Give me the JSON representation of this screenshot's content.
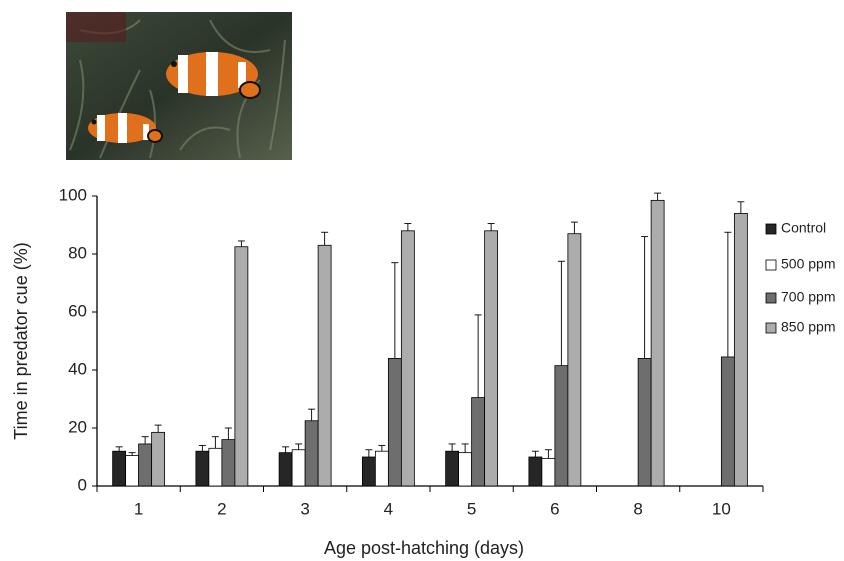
{
  "chart_data": {
    "type": "bar",
    "x_label": "Age post-hatching (days)",
    "y_label": "Time in predator cue (%)",
    "categories": [
      "1",
      "2",
      "3",
      "4",
      "5",
      "6",
      "8",
      "10"
    ],
    "series": [
      {
        "name": "Control",
        "color": "#262626",
        "values": [
          12,
          12,
          11.5,
          10,
          12,
          10,
          null,
          null
        ],
        "errors": [
          1.5,
          2,
          2,
          2.5,
          2.5,
          2,
          null,
          null
        ]
      },
      {
        "name": "500 ppm",
        "color": "#ffffff",
        "values": [
          10.5,
          13,
          12.5,
          12,
          11.5,
          9.5,
          null,
          null
        ],
        "errors": [
          1,
          4,
          2,
          2,
          3,
          3,
          null,
          null
        ]
      },
      {
        "name": "700 ppm",
        "color": "#6e6e6e",
        "values": [
          14.5,
          16,
          22.5,
          44,
          30.5,
          41.5,
          44,
          44.5
        ],
        "errors": [
          2.5,
          4,
          4,
          33,
          28.5,
          36,
          42,
          43
        ]
      },
      {
        "name": "850 ppm",
        "color": "#acacac",
        "values": [
          18.5,
          82.5,
          83,
          88,
          88,
          87,
          98.5,
          94
        ],
        "errors": [
          2.5,
          2,
          4.5,
          2.5,
          2.5,
          4,
          2.5,
          4
        ]
      }
    ],
    "ylim": [
      0,
      100
    ],
    "yticks": [
      0,
      20,
      40,
      60,
      80,
      100
    ],
    "grid": false,
    "legend": "right"
  }
}
